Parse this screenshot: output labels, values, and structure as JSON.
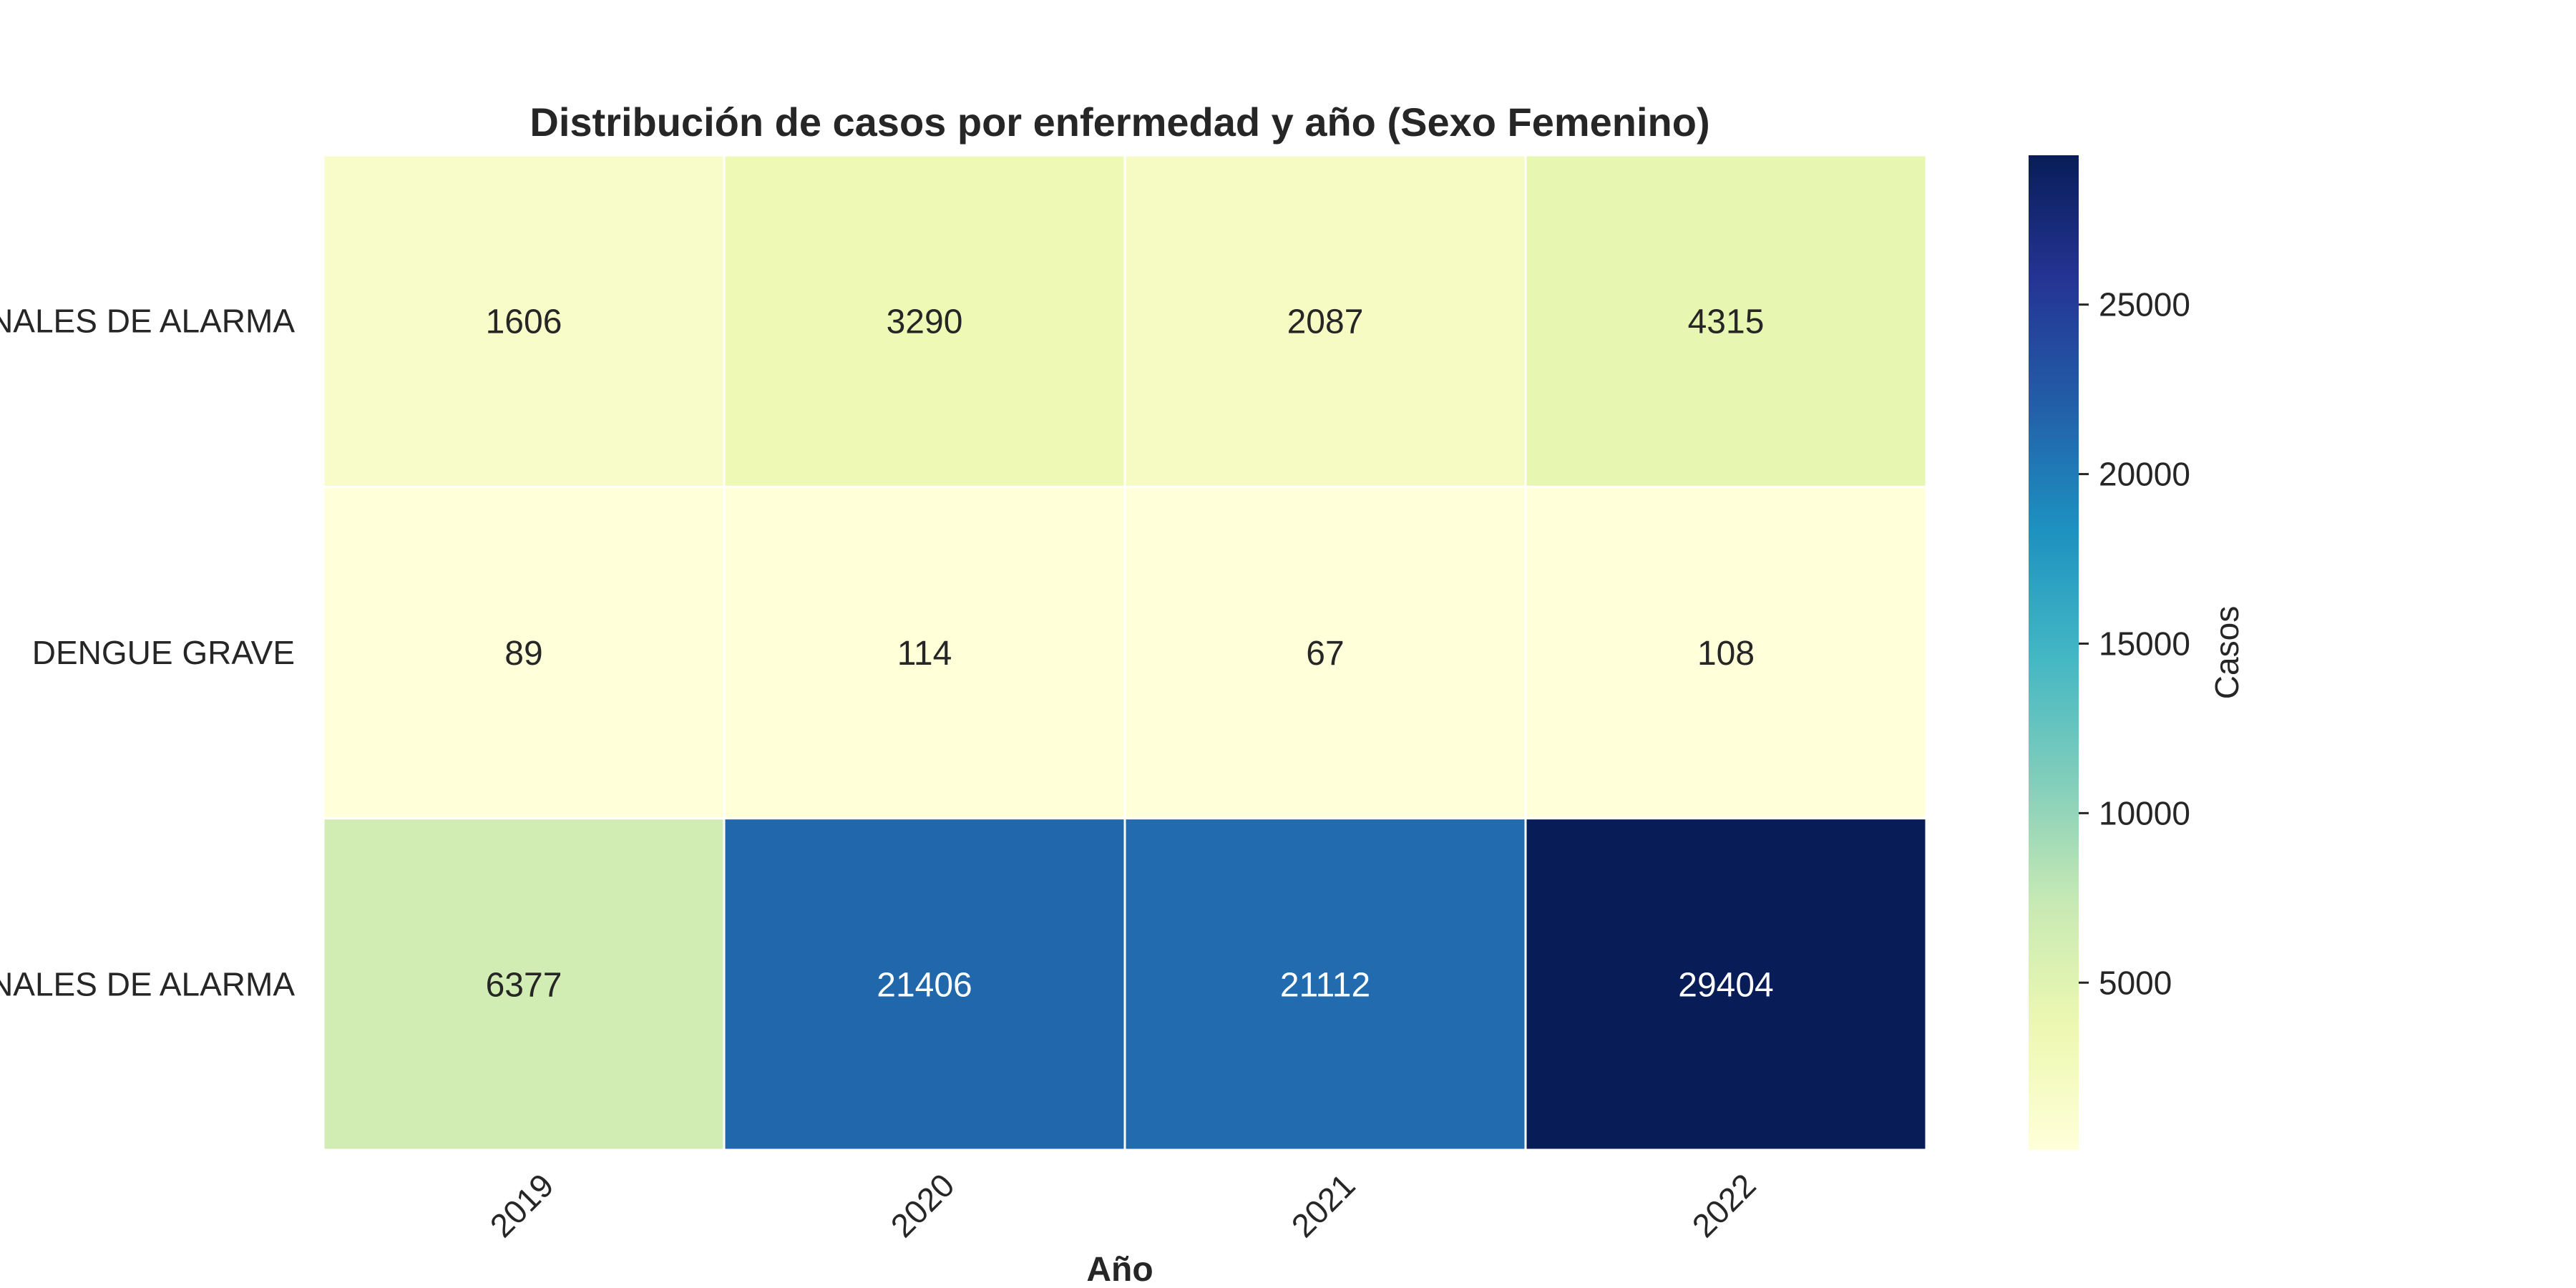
{
  "chart_data": {
    "type": "heatmap",
    "title": "Distribución de casos por enfermedad y año (Sexo Femenino)",
    "xlabel": "Año",
    "ylabel": "",
    "x_categories": [
      "2019",
      "2020",
      "2021",
      "2022"
    ],
    "y_categories": [
      "DENGUE SIN SIGNOS DE ALARMA",
      "DENGUE GRAVE",
      "DENGUE CON SIGNOS DE ALARMA"
    ],
    "y_tick_labels_visible": [
      "NALES DE ALARMA",
      "DENGUE GRAVE",
      "NALES DE ALARMA"
    ],
    "values": [
      [
        1606,
        3290,
        2087,
        4315
      ],
      [
        89,
        114,
        67,
        108
      ],
      [
        6377,
        21406,
        21112,
        29404
      ]
    ],
    "colormap": "YlGnBu",
    "colors": {
      "low": "#ffffd9",
      "high": "#081d58",
      "gridline": "#ffffff",
      "dark_text": "#262626",
      "light_text": "#ffffff"
    },
    "colorbar": {
      "label": "Casos",
      "min": 67,
      "max": 29404,
      "ticks": [
        5000,
        10000,
        15000,
        20000,
        25000
      ]
    },
    "grid": false,
    "legend": "colorbar-right"
  }
}
